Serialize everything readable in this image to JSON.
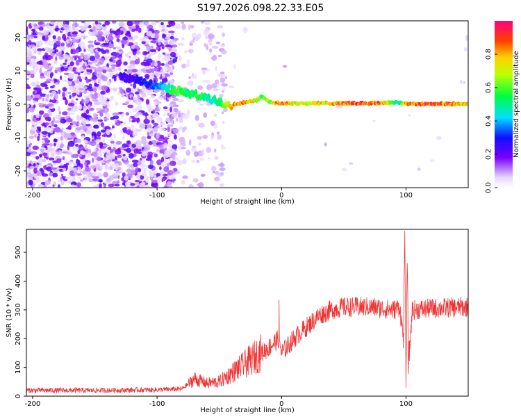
{
  "title": "S197.2026.098.22.33.E05",
  "chart_data": [
    {
      "type": "heatmap",
      "xlabel": "Height of straight line (km)",
      "ylabel": "Frequency (Hz)",
      "xlim": [
        -205,
        150
      ],
      "ylim": [
        -25,
        25
      ],
      "xticks": [
        -200,
        -100,
        0,
        100
      ],
      "yticks": [
        -20,
        -10,
        0,
        10,
        20
      ],
      "colorbar": {
        "label": "Normalized spectral amplitude",
        "range": [
          0,
          1
        ],
        "ticks": [
          "0.0",
          "0.2",
          "0.4",
          "0.6",
          "0.8"
        ],
        "tick_values": [
          0,
          0.2,
          0.4,
          0.6,
          0.8
        ]
      },
      "ridge": {
        "x": [
          -125,
          -110,
          -95,
          -90,
          -85,
          -80,
          -75,
          -70,
          -65,
          -60,
          -55,
          -50,
          -45,
          -40,
          -35,
          -30,
          -25,
          -20,
          -15,
          -10,
          -5,
          0,
          10,
          20,
          40,
          60,
          80,
          90,
          95,
          100,
          120,
          150
        ],
        "freq": [
          8.0,
          6.5,
          5.0,
          4.5,
          4.2,
          3.8,
          3.3,
          2.8,
          2.3,
          1.8,
          1.3,
          0.8,
          0.2,
          -0.2,
          0.1,
          0.5,
          0.9,
          1.2,
          2.5,
          0.8,
          0.4,
          0.3,
          0.3,
          0.3,
          0.3,
          0.3,
          0.4,
          0.6,
          0.4,
          0.2,
          0.1,
          0.1
        ],
        "amplitude": [
          0.25,
          0.3,
          0.45,
          0.55,
          0.6,
          0.6,
          0.55,
          0.55,
          0.6,
          0.55,
          0.5,
          0.6,
          0.75,
          0.85,
          0.9,
          0.85,
          0.8,
          0.75,
          0.6,
          0.7,
          0.85,
          0.95,
          0.8,
          0.75,
          0.85,
          0.95,
          0.9,
          0.6,
          0.5,
          0.85,
          0.95,
          0.8
        ]
      }
    },
    {
      "type": "line",
      "xlabel": "Height of straight line (km)",
      "ylabel": "SNR (10 * v/v)",
      "xlim": [
        -205,
        150
      ],
      "ylim": [
        0,
        580
      ],
      "xticks": [
        -200,
        -100,
        0,
        100
      ],
      "yticks": [
        0,
        100,
        200,
        300,
        400,
        500
      ],
      "color": "#ee3333",
      "series": [
        {
          "name": "SNR",
          "x": [
            -205,
            -150,
            -100,
            -80,
            -70,
            -60,
            -50,
            -40,
            -30,
            -20,
            -10,
            -2,
            0,
            10,
            20,
            30,
            40,
            50,
            70,
            90,
            95,
            98,
            99,
            100,
            101,
            102,
            105,
            120,
            150
          ],
          "y": [
            20,
            20,
            22,
            25,
            60,
            45,
            50,
            80,
            110,
            140,
            170,
            200,
            150,
            200,
            240,
            280,
            300,
            310,
            310,
            300,
            310,
            200,
            560,
            50,
            480,
            100,
            300,
            305,
            310
          ]
        }
      ],
      "spikes": [
        {
          "x": -2,
          "y": 335
        },
        {
          "x": 99,
          "y": 575
        },
        {
          "x": 100,
          "y": 45
        }
      ]
    }
  ]
}
